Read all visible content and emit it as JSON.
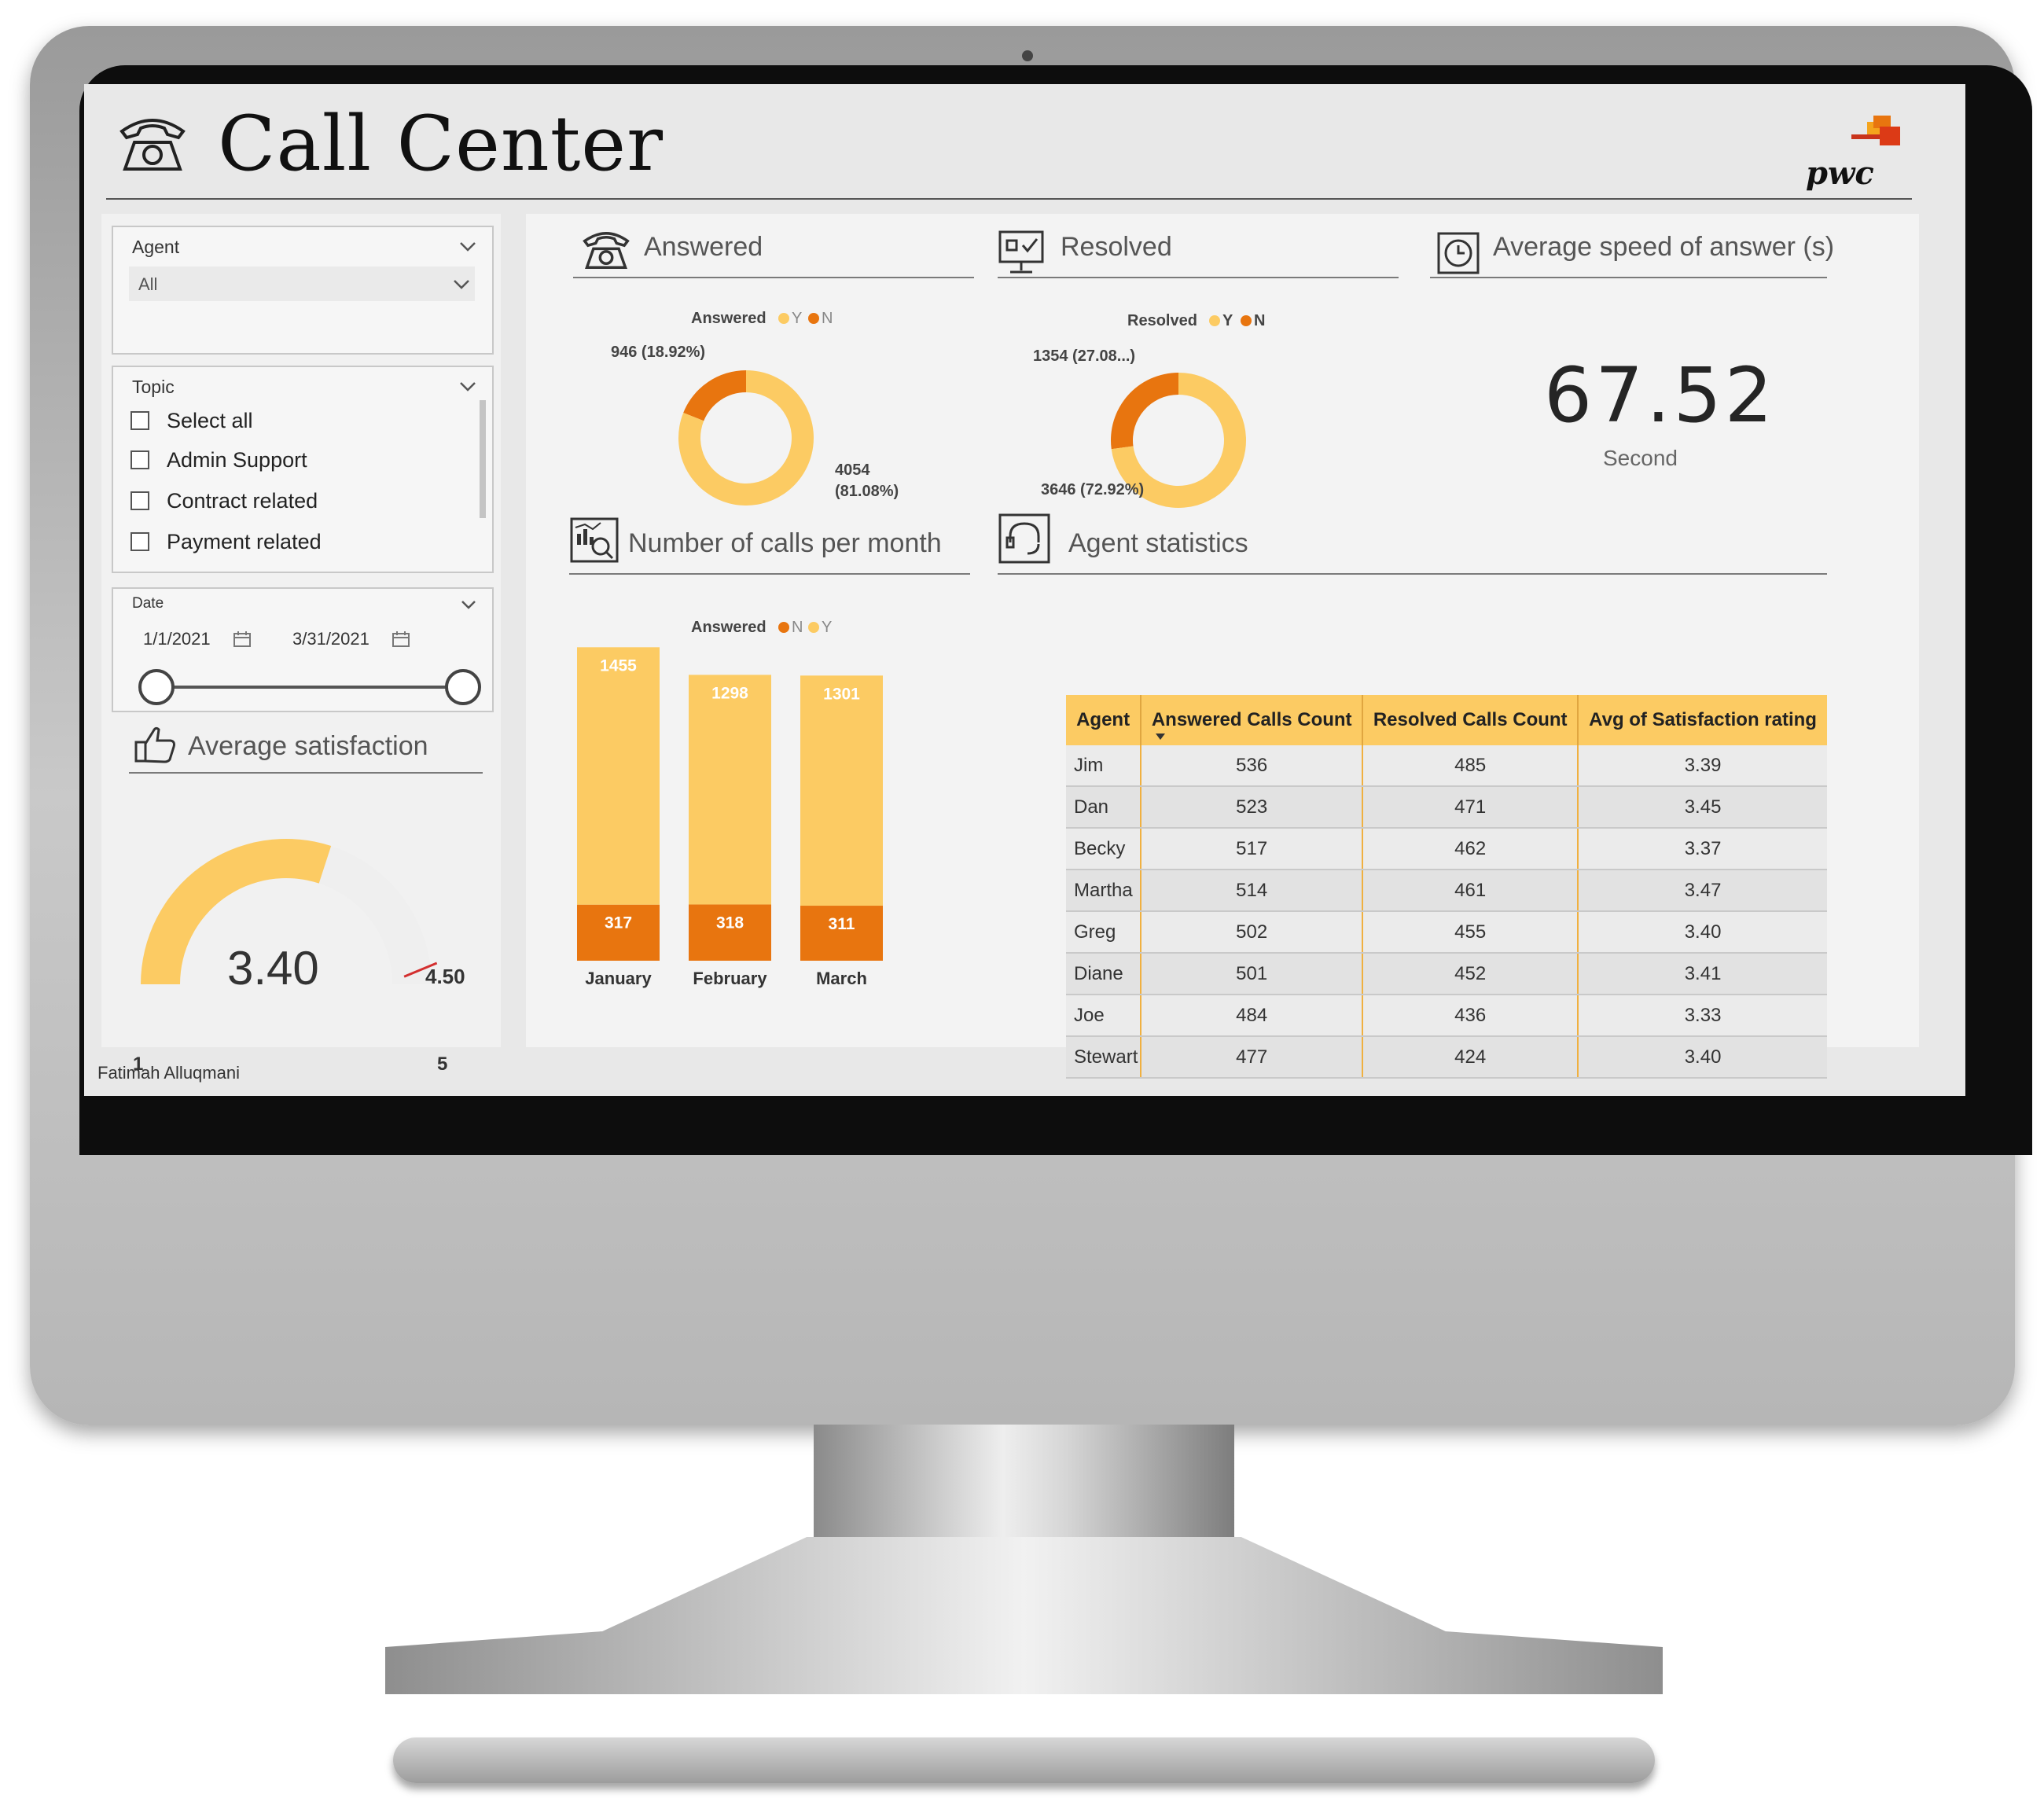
{
  "header": {
    "title": "Call Center",
    "logo_text": "pwc"
  },
  "slicers": {
    "agent": {
      "title": "Agent",
      "value": "All"
    },
    "topic": {
      "title": "Topic",
      "options": [
        "Select all",
        "Admin Support",
        "Contract related",
        "Payment related"
      ]
    },
    "date": {
      "title": "Date",
      "start": "1/1/2021",
      "end": "3/31/2021"
    }
  },
  "satisfaction": {
    "title": "Average satisfaction",
    "value": "3.40",
    "min": "1",
    "max": "5",
    "target": "4.50"
  },
  "answered": {
    "title": "Answered",
    "legend_title": "Answered",
    "legend": [
      "Y",
      "N"
    ],
    "label_n": "946 (18.92%)",
    "label_y_line1": "4054",
    "label_y_line2": "(81.08%)"
  },
  "resolved": {
    "title": "Resolved",
    "legend_title": "Resolved",
    "legend": [
      "Y",
      "N"
    ],
    "label_n": "1354 (27.08...)",
    "label_y": "3646 (72.92%)"
  },
  "speed": {
    "title": "Average speed of answer (s)",
    "value": "67.52",
    "unit": "Second"
  },
  "calls_per_month": {
    "title": "Number of calls per month",
    "legend_title": "Answered",
    "legend": [
      "N",
      "Y"
    ]
  },
  "agent_stats": {
    "title": "Agent statistics",
    "columns": [
      "Agent",
      "Answered Calls Count",
      "Resolved Calls Count",
      "Avg of Satisfaction rating"
    ],
    "rows": [
      [
        "Jim",
        "536",
        "485",
        "3.39"
      ],
      [
        "Dan",
        "523",
        "471",
        "3.45"
      ],
      [
        "Becky",
        "517",
        "462",
        "3.37"
      ],
      [
        "Martha",
        "514",
        "461",
        "3.47"
      ],
      [
        "Greg",
        "502",
        "455",
        "3.40"
      ],
      [
        "Diane",
        "501",
        "452",
        "3.41"
      ],
      [
        "Joe",
        "484",
        "436",
        "3.33"
      ],
      [
        "Stewart",
        "477",
        "424",
        "3.40"
      ]
    ]
  },
  "footer": {
    "author": "Fatimah Alluqmani"
  },
  "colors": {
    "yes": "#fccb63",
    "no": "#e8750f",
    "gauge_track": "#efefef",
    "target": "#d32f2f"
  },
  "chart_data": [
    {
      "type": "pie",
      "categories": [
        "Y",
        "N"
      ],
      "values": [
        4054,
        946
      ],
      "percent": [
        81.08,
        18.92
      ]
    },
    {
      "type": "pie",
      "categories": [
        "Y",
        "N"
      ],
      "values": [
        3646,
        1354
      ],
      "percent": [
        72.92,
        27.08
      ]
    },
    {
      "type": "bar",
      "stacked": true,
      "categories": [
        "January",
        "February",
        "March"
      ],
      "series": [
        {
          "name": "N",
          "values": [
            317,
            318,
            311
          ]
        },
        {
          "name": "Y",
          "values": [
            1455,
            1298,
            1301
          ]
        }
      ]
    },
    {
      "type": "gauge",
      "value": 3.4,
      "min": 1,
      "max": 5,
      "target": 4.5
    }
  ]
}
